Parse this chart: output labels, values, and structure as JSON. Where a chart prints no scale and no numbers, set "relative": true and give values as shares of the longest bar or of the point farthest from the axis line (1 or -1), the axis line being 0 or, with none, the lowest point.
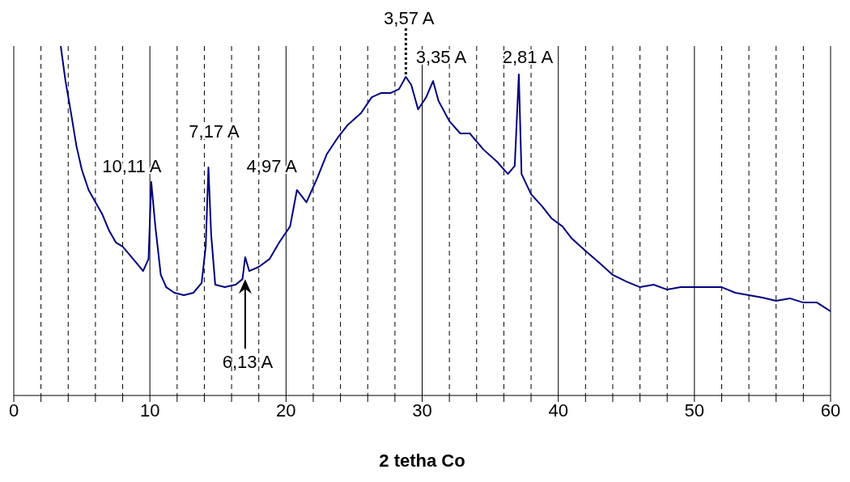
{
  "chart_data": {
    "type": "line",
    "relative": true,
    "xlabel": "2 tetha Co",
    "x": [
      3.45,
      3.8,
      4.2,
      4.6,
      5.0,
      5.5,
      6.0,
      6.5,
      7.0,
      7.5,
      8.0,
      8.5,
      9.0,
      9.5,
      9.9,
      10.1,
      10.4,
      10.8,
      11.2,
      11.8,
      12.5,
      13.2,
      13.8,
      14.1,
      14.3,
      14.5,
      14.8,
      15.5,
      16.3,
      16.8,
      17.0,
      17.3,
      18.0,
      18.8,
      19.5,
      20.3,
      20.8,
      21.5,
      22.3,
      23.0,
      23.8,
      24.5,
      25.5,
      26.3,
      27.0,
      27.7,
      28.3,
      28.8,
      29.2,
      29.7,
      30.3,
      30.8,
      31.2,
      32.0,
      32.8,
      33.5,
      34.5,
      35.5,
      36.3,
      36.8,
      37.1,
      37.3,
      38.0,
      38.8,
      39.5,
      40.3,
      41.0,
      42.0,
      43.0,
      44.0,
      45.0,
      46.0,
      47.0,
      48.0,
      49.0,
      50.0,
      51.0,
      52.0,
      53.0,
      54.0,
      55.0,
      56.0,
      57.0,
      58.0,
      59.0,
      60.0
    ],
    "series": [
      {
        "color": "#000080",
        "values": [
          1.0,
          0.9,
          0.81,
          0.715,
          0.646,
          0.588,
          0.553,
          0.519,
          0.472,
          0.438,
          0.426,
          0.403,
          0.38,
          0.356,
          0.391,
          0.611,
          0.484,
          0.345,
          0.31,
          0.294,
          0.287,
          0.294,
          0.322,
          0.426,
          0.653,
          0.461,
          0.317,
          0.31,
          0.317,
          0.333,
          0.396,
          0.356,
          0.368,
          0.391,
          0.438,
          0.484,
          0.588,
          0.553,
          0.623,
          0.691,
          0.738,
          0.773,
          0.808,
          0.854,
          0.866,
          0.866,
          0.877,
          0.912,
          0.889,
          0.819,
          0.854,
          0.9,
          0.843,
          0.785,
          0.75,
          0.75,
          0.704,
          0.669,
          0.634,
          0.657,
          0.919,
          0.634,
          0.576,
          0.542,
          0.507,
          0.484,
          0.449,
          0.414,
          0.38,
          0.345,
          0.326,
          0.31,
          0.317,
          0.303,
          0.31,
          0.31,
          0.31,
          0.31,
          0.294,
          0.287,
          0.28,
          0.271,
          0.278,
          0.266,
          0.266,
          0.241
        ]
      }
    ],
    "xlim": [
      0,
      60
    ],
    "xticks": [
      0,
      {
        "value": 2,
        "label": null
      },
      {
        "value": 4,
        "label": null
      },
      {
        "value": 6,
        "label": null
      },
      {
        "value": 8,
        "label": null
      },
      10,
      {
        "value": 12,
        "label": null
      },
      {
        "value": 14,
        "label": null
      },
      {
        "value": 16,
        "label": null
      },
      {
        "value": 18,
        "label": null
      },
      20,
      {
        "value": 22,
        "label": null
      },
      {
        "value": 24,
        "label": null
      },
      {
        "value": 26,
        "label": null
      },
      {
        "value": 28,
        "label": null
      },
      30,
      {
        "value": 32,
        "label": null
      },
      {
        "value": 34,
        "label": null
      },
      {
        "value": 36,
        "label": null
      },
      {
        "value": 38,
        "label": null
      },
      40,
      {
        "value": 42,
        "label": null
      },
      {
        "value": 44,
        "label": null
      },
      {
        "value": 46,
        "label": null
      },
      {
        "value": 48,
        "label": null
      },
      50,
      {
        "value": 52,
        "label": null
      },
      {
        "value": 54,
        "label": null
      },
      {
        "value": 56,
        "label": null
      },
      {
        "value": 58,
        "label": null
      },
      60
    ],
    "grid": "x",
    "legend": false,
    "marker": "none",
    "line_style": "solid",
    "annotations": [
      {
        "text": "10,11 A",
        "x": 10.1,
        "y": 0.611
      },
      {
        "text": "7,17 A",
        "x": 14.3,
        "y": 0.653
      },
      {
        "text": "4,97 A",
        "x": 20.8,
        "y": 0.588
      },
      {
        "text": "3,57 A",
        "x": 28.8,
        "y": 0.912
      },
      {
        "text": "3,35 A",
        "x": 30.8,
        "y": 0.9
      },
      {
        "text": "2,81 A",
        "x": 37.1,
        "y": 0.919
      },
      {
        "text": "6,13 A",
        "x": 17.0,
        "y": 0.333
      }
    ]
  }
}
